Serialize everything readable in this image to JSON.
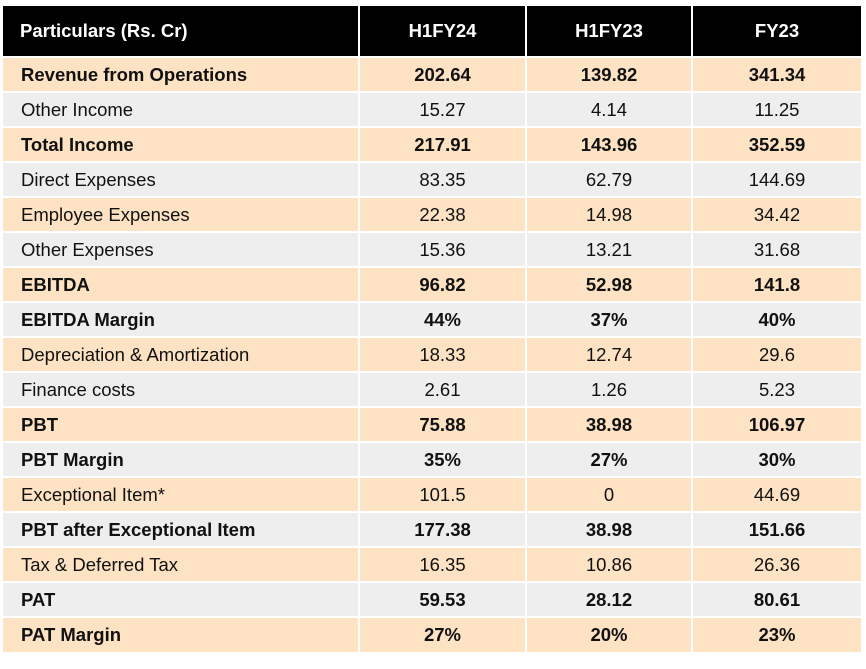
{
  "table": {
    "headers": [
      "Particulars (Rs. Cr)",
      "H1FY24",
      "H1FY23",
      "FY23"
    ],
    "rows": [
      {
        "label": "Revenue from Operations",
        "values": [
          "202.64",
          "139.82",
          "341.34"
        ],
        "bold": true
      },
      {
        "label": "Other Income",
        "values": [
          "15.27",
          "4.14",
          "11.25"
        ],
        "bold": false
      },
      {
        "label": "Total Income",
        "values": [
          "217.91",
          "143.96",
          "352.59"
        ],
        "bold": true
      },
      {
        "label": "Direct Expenses",
        "values": [
          "83.35",
          "62.79",
          "144.69"
        ],
        "bold": false
      },
      {
        "label": "Employee Expenses",
        "values": [
          "22.38",
          "14.98",
          "34.42"
        ],
        "bold": false
      },
      {
        "label": "Other Expenses",
        "values": [
          "15.36",
          "13.21",
          "31.68"
        ],
        "bold": false
      },
      {
        "label": "EBITDA",
        "values": [
          "96.82",
          "52.98",
          "141.8"
        ],
        "bold": true
      },
      {
        "label": "EBITDA Margin",
        "values": [
          "44%",
          "37%",
          "40%"
        ],
        "bold": true
      },
      {
        "label": "Depreciation & Amortization",
        "values": [
          "18.33",
          "12.74",
          "29.6"
        ],
        "bold": false
      },
      {
        "label": "Finance costs",
        "values": [
          "2.61",
          "1.26",
          "5.23"
        ],
        "bold": false
      },
      {
        "label": "PBT",
        "values": [
          "75.88",
          "38.98",
          "106.97"
        ],
        "bold": true
      },
      {
        "label": "PBT Margin",
        "values": [
          "35%",
          "27%",
          "30%"
        ],
        "bold": true
      },
      {
        "label": "Exceptional Item*",
        "values": [
          "101.5",
          "0",
          "44.69"
        ],
        "bold": false
      },
      {
        "label": "PBT after Exceptional Item",
        "values": [
          "177.38",
          "38.98",
          "151.66"
        ],
        "bold": true
      },
      {
        "label": "Tax & Deferred Tax",
        "values": [
          "16.35",
          "10.86",
          "26.36"
        ],
        "bold": false
      },
      {
        "label": "PAT",
        "values": [
          "59.53",
          "28.12",
          "80.61"
        ],
        "bold": true
      },
      {
        "label": "PAT Margin",
        "values": [
          "27%",
          "20%",
          "23%"
        ],
        "bold": true
      }
    ]
  },
  "colors": {
    "header_bg": "#000000",
    "header_text": "#ffffff",
    "row_peach": "#fde3c3",
    "row_gray": "#eeeeee"
  }
}
